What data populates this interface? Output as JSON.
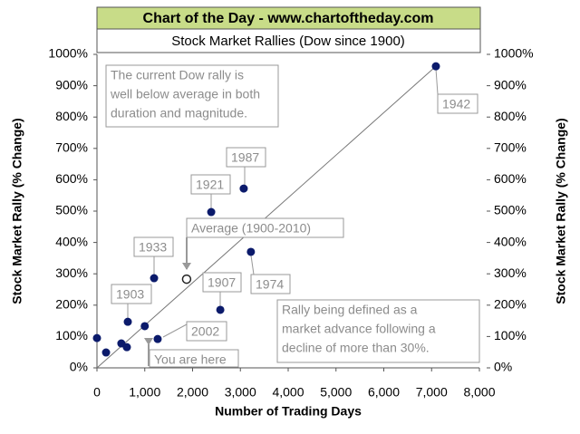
{
  "chart_data": {
    "type": "scatter",
    "header": "Chart of the Day - www.chartoftheday.com",
    "title": "Stock Market Rallies (Dow since 1900)",
    "xlabel": "Number of Trading Days",
    "ylabel": "Stock Market Rally (% Change)",
    "y2label": "Stock Market Rally (% Change)",
    "x": [
      0,
      190,
      510,
      625,
      645,
      1000,
      1195,
      1270,
      2390,
      2580,
      3070,
      3220,
      7090
    ],
    "y": [
      95,
      49,
      78,
      66,
      147,
      133,
      286,
      92,
      497,
      185,
      572,
      370,
      962
    ],
    "color": "#0b1a6b",
    "average": {
      "x": 1875,
      "y": 283
    },
    "xlim": [
      0,
      8000
    ],
    "ylim": [
      0,
      1000
    ],
    "y2lim": [
      0,
      1000
    ],
    "xticks": [
      0,
      {
        "value": 1000,
        "label": "1,000"
      },
      {
        "value": 2000,
        "label": "2,000"
      },
      {
        "value": 3000,
        "label": "3,000"
      },
      {
        "value": 4000,
        "label": "4,000"
      },
      {
        "value": 5000,
        "label": "5,000"
      },
      {
        "value": 6000,
        "label": "6,000"
      },
      {
        "value": 7000,
        "label": "7,000"
      },
      {
        "value": 8000,
        "label": "8,000"
      }
    ],
    "yticks": [
      {
        "value": 0,
        "label": "0%"
      },
      {
        "value": 100,
        "label": "100%"
      },
      {
        "value": 200,
        "label": "200%"
      },
      {
        "value": 300,
        "label": "300%"
      },
      {
        "value": 400,
        "label": "400%"
      },
      {
        "value": 500,
        "label": "500%"
      },
      {
        "value": 600,
        "label": "600%"
      },
      {
        "value": 700,
        "label": "700%"
      },
      {
        "value": 800,
        "label": "800%"
      },
      {
        "value": 900,
        "label": "900%"
      },
      {
        "value": 1000,
        "label": "1000%"
      }
    ],
    "y2ticks": [
      {
        "value": 0,
        "label": "0%"
      },
      {
        "value": 100,
        "label": "100%"
      },
      {
        "value": 200,
        "label": "200%"
      },
      {
        "value": 300,
        "label": "300%"
      },
      {
        "value": 400,
        "label": "400%"
      },
      {
        "value": 500,
        "label": "500%"
      },
      {
        "value": 600,
        "label": "600%"
      },
      {
        "value": 700,
        "label": "700%"
      },
      {
        "value": 800,
        "label": "800%"
      },
      {
        "value": 900,
        "label": "900%"
      },
      {
        "value": 1000,
        "label": "1000%"
      }
    ],
    "annotations": [
      {
        "lines": [
          "The current Dow rally is",
          "well below average in both",
          "duration and magnitude."
        ]
      },
      {
        "lines": [
          "1942"
        ]
      },
      {
        "lines": [
          "1987"
        ]
      },
      {
        "lines": [
          "1921"
        ]
      },
      {
        "lines": [
          "Average (1900-2010)"
        ]
      },
      {
        "lines": [
          "1933"
        ]
      },
      {
        "lines": [
          "1907"
        ]
      },
      {
        "lines": [
          "1974"
        ]
      },
      {
        "lines": [
          "1903"
        ]
      },
      {
        "lines": [
          "2002"
        ]
      },
      {
        "lines": [
          "You are here"
        ]
      },
      {
        "lines": [
          "Rally being defined as a",
          "market advance following a",
          "decline of more than 30%."
        ]
      }
    ]
  }
}
